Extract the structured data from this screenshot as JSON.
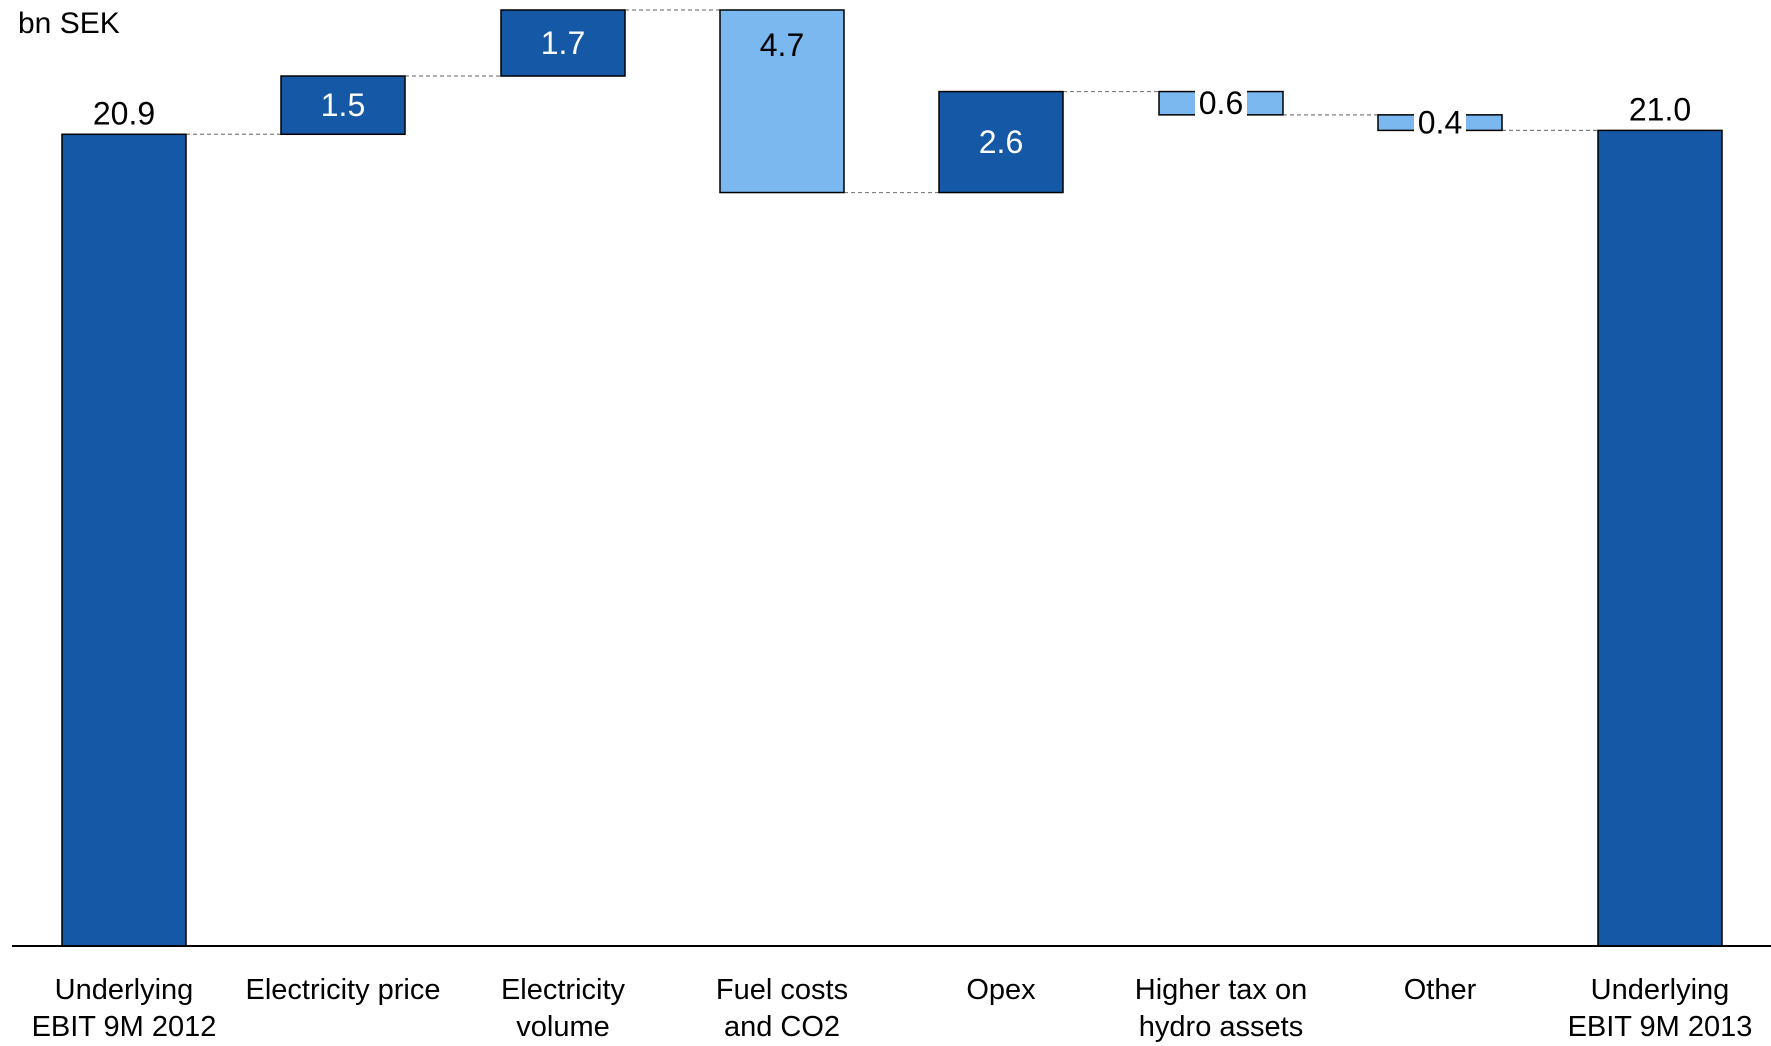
{
  "chart_data": {
    "type": "bar",
    "subtype": "waterfall",
    "unit_label": "bn SEK",
    "categories": [
      [
        "Underlying",
        "EBIT 9M 2012"
      ],
      [
        "Electricity price"
      ],
      [
        "Electricity",
        "volume"
      ],
      [
        "Fuel costs",
        "and CO2"
      ],
      [
        "Opex"
      ],
      [
        "Higher tax on",
        "hydro assets"
      ],
      [
        "Other"
      ],
      [
        "Underlying",
        "EBIT 9M 2013"
      ]
    ],
    "bars": [
      {
        "kind": "total",
        "start": 0,
        "end": 20.9,
        "label": "20.9"
      },
      {
        "kind": "increase",
        "start": 20.9,
        "end": 22.4,
        "label": "1.5"
      },
      {
        "kind": "increase",
        "start": 22.4,
        "end": 24.1,
        "label": "1.7"
      },
      {
        "kind": "decrease",
        "start": 24.1,
        "end": 19.4,
        "label": "4.7"
      },
      {
        "kind": "increase",
        "start": 19.4,
        "end": 22.0,
        "label": "2.6"
      },
      {
        "kind": "decrease",
        "start": 22.0,
        "end": 21.4,
        "label": "0.6"
      },
      {
        "kind": "decrease",
        "start": 21.4,
        "end": 21.0,
        "label": "0.4"
      },
      {
        "kind": "total",
        "start": 0,
        "end": 21.0,
        "label": "21.0"
      }
    ],
    "ylim": [
      0,
      24.1
    ],
    "grid": false,
    "legend": "none",
    "colors": {
      "dark": "#1558a6",
      "light": "#7ab8ef",
      "axis": "#000000",
      "connector": "#808080"
    }
  }
}
